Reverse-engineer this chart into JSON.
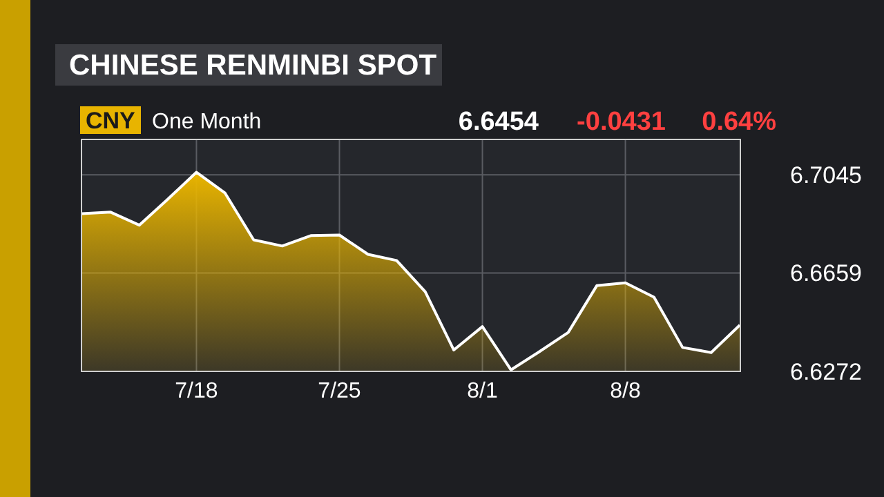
{
  "chart_data": {
    "type": "area",
    "title": "CHINESE RENMINBI SPOT",
    "subtitle": "One Month",
    "categories": [
      null,
      null,
      null,
      null,
      "7/18",
      null,
      null,
      null,
      null,
      "7/25",
      null,
      null,
      null,
      null,
      "8/1",
      null,
      null,
      null,
      null,
      "8/8",
      null,
      null,
      null,
      null
    ],
    "series": [
      {
        "name": "CNY",
        "color": "#e8b400",
        "values": [
          6.6892,
          6.6898,
          6.6847,
          6.6949,
          6.7055,
          6.6973,
          6.6789,
          6.6765,
          6.6806,
          6.6808,
          6.6732,
          6.6708,
          6.6585,
          6.6356,
          6.6448,
          6.6278,
          6.635,
          6.6425,
          6.6609,
          6.662,
          6.6564,
          6.6366,
          6.6346,
          6.6454
        ]
      }
    ],
    "annotations": [
      "6.6454",
      "-0.0431",
      "0.64%"
    ],
    "ylim": [
      6.6272,
      6.7184
    ],
    "yticks": [
      6.6272,
      6.6659,
      6.7045
    ],
    "grid": true,
    "legend": "top left"
  }
}
